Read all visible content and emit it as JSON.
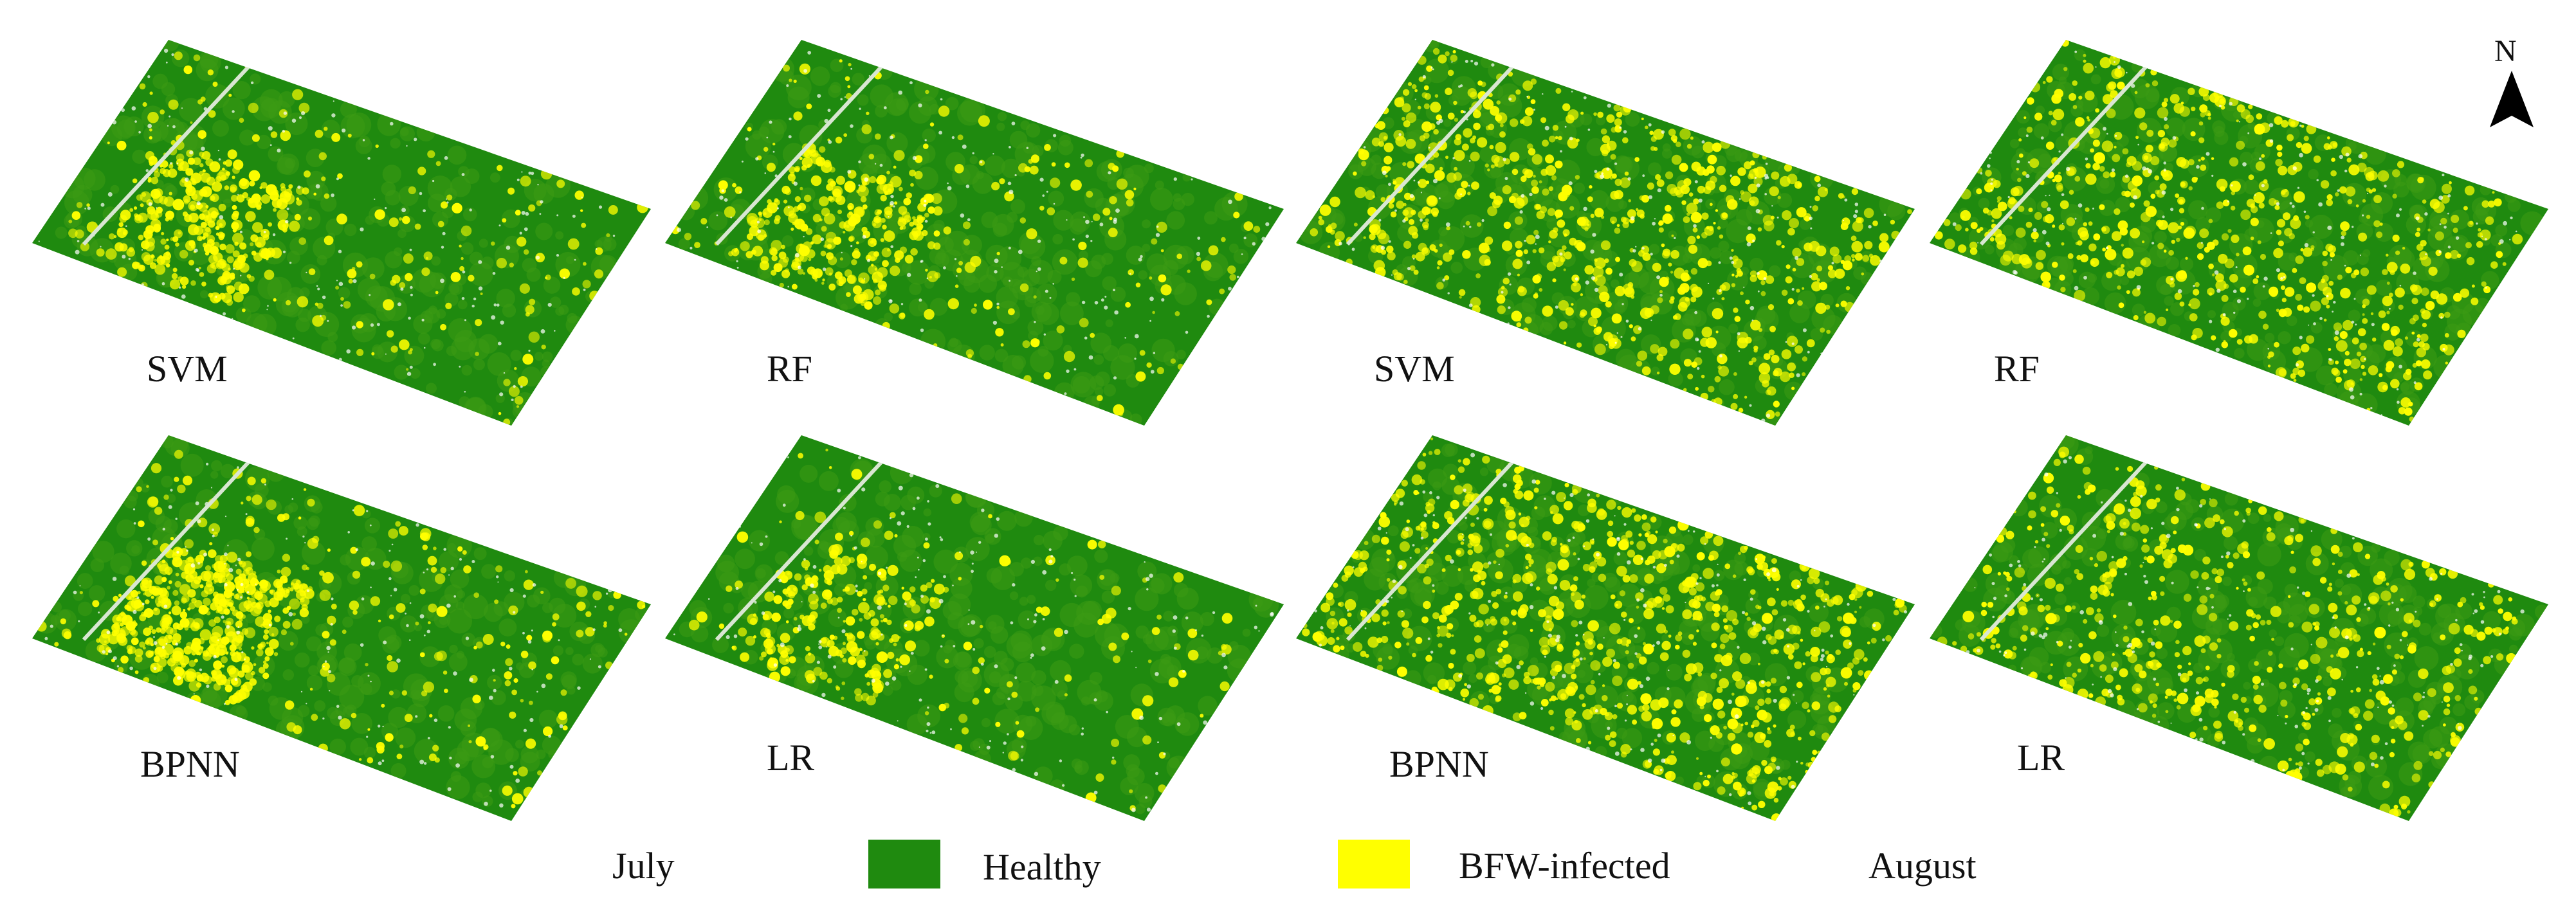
{
  "panels": [
    {
      "id": "july-svm",
      "month": "July",
      "method": "SVM",
      "infection_level": 0.22,
      "seed": 11
    },
    {
      "id": "july-rf",
      "month": "July",
      "method": "RF",
      "infection_level": 0.2,
      "seed": 23
    },
    {
      "id": "august-svm",
      "month": "August",
      "method": "SVM",
      "infection_level": 0.34,
      "seed": 37
    },
    {
      "id": "august-rf",
      "month": "August",
      "method": "RF",
      "infection_level": 0.3,
      "seed": 41
    },
    {
      "id": "july-bpnn",
      "month": "July",
      "method": "BPNN",
      "infection_level": 0.3,
      "seed": 53
    },
    {
      "id": "july-lr",
      "month": "July",
      "method": "LR",
      "infection_level": 0.14,
      "seed": 67
    },
    {
      "id": "august-bpnn",
      "month": "August",
      "method": "BPNN",
      "infection_level": 0.36,
      "seed": 71
    },
    {
      "id": "august-lr",
      "month": "August",
      "method": "LR",
      "infection_level": 0.24,
      "seed": 89
    }
  ],
  "legend": {
    "month_left": "July",
    "month_right": "August",
    "classes": [
      {
        "label": "Healthy",
        "color": "#1f8a0f"
      },
      {
        "label": "BFW-infected",
        "color": "#ffff00"
      }
    ]
  },
  "north_arrow": {
    "label": "N",
    "icon": "north-arrow-icon"
  },
  "colors": {
    "healthy_dark": "#1f8a0f",
    "healthy_mid": "#3d9a14",
    "infected": "#ffff00",
    "background": "#ffffff"
  }
}
